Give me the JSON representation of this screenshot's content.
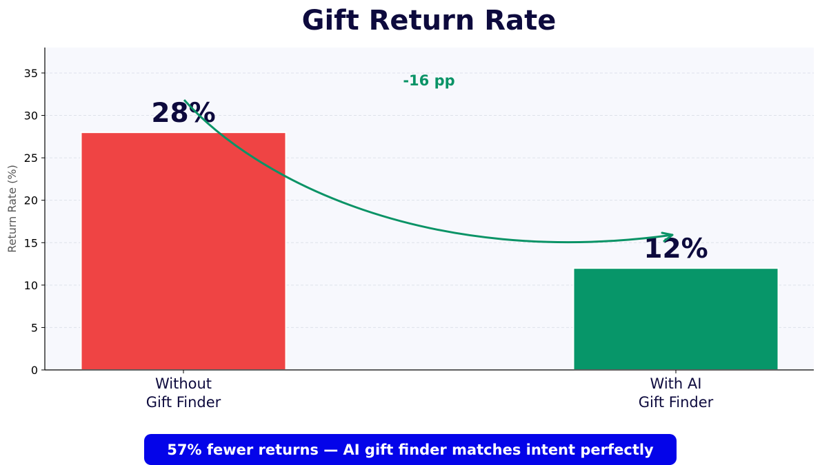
{
  "chart_data": {
    "type": "bar",
    "title": "Gift Return Rate",
    "xlabel": "",
    "ylabel": "Return Rate (%)",
    "ylim": [
      0,
      38
    ],
    "yticks": [
      0,
      5,
      10,
      15,
      20,
      25,
      30,
      35
    ],
    "grid": true,
    "categories": [
      [
        "Without",
        "Gift Finder"
      ],
      [
        "With AI",
        "Gift Finder"
      ]
    ],
    "values": [
      28,
      12
    ],
    "value_labels": [
      "28%",
      "12%"
    ],
    "bar_colors": [
      "#ef4444",
      "#079669"
    ],
    "annotation": {
      "text": "-16 pp",
      "color": "#0a9366"
    },
    "plot_background": "#f7f8fd"
  },
  "callout": {
    "text": "57% fewer returns — AI gift finder matches intent perfectly",
    "background": "#0404e9",
    "color": "#ffffff"
  }
}
